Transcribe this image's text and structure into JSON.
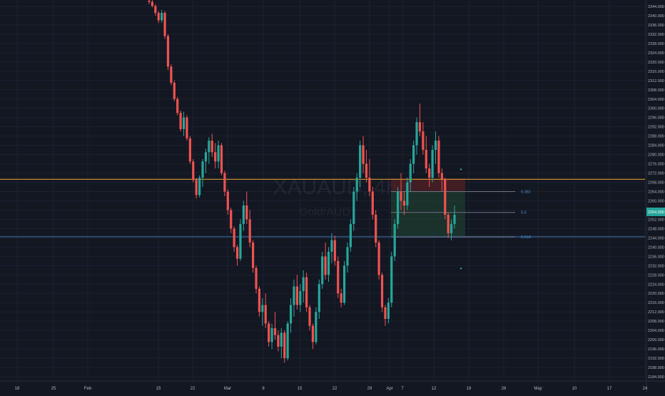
{
  "chart_data": {
    "type": "candlestick",
    "symbol": "XAUAUD, 4h",
    "description": "Gold/AUD",
    "colors": {
      "background": "#131722",
      "grid": "#1c2030",
      "up": "#26a69a",
      "down": "#ef5350",
      "wick": "#8a8f9c",
      "axis_text": "#b2b5be",
      "resistance": "#f0a830",
      "support": "#2a4a6a",
      "fib": "#6d7482",
      "fib_label": "#4a8ec9",
      "target_zone": "#1f3b30",
      "stop_zone": "#4a1f25",
      "price_label_bg": "#26a69a"
    },
    "y_axis": {
      "min": 2184.0,
      "max": 2344.0,
      "ticks": [
        "2344.000",
        "2340.000",
        "2336.000",
        "2332.000",
        "2328.000",
        "2324.000",
        "2320.000",
        "2316.000",
        "2312.000",
        "2308.000",
        "2304.000",
        "2300.000",
        "2296.000",
        "2292.000",
        "2288.000",
        "2284.000",
        "2280.000",
        "2276.000",
        "2272.000",
        "2268.000",
        "2264.000",
        "2260.000",
        "2256.000",
        "2252.000",
        "2248.000",
        "2244.000",
        "2240.000",
        "2236.000",
        "2232.000",
        "2228.000",
        "2224.000",
        "2220.000",
        "2216.000",
        "2212.000",
        "2208.000",
        "2204.000",
        "2200.000",
        "2196.000",
        "2192.000",
        "2188.000",
        "2184.000"
      ]
    },
    "x_axis": {
      "labels": [
        "18",
        "25",
        "Feb",
        "15",
        "22",
        "Mar",
        "8",
        "15",
        "22",
        "29",
        "Apr",
        "7",
        "12",
        "19",
        "26",
        "May",
        "10",
        "17",
        "24"
      ]
    },
    "horizontal_lines": [
      {
        "name": "resistance",
        "price": 2269.3
      },
      {
        "name": "support",
        "price": 2244.5
      }
    ],
    "fib_levels": [
      {
        "label": "0.382",
        "price": 2264.0
      },
      {
        "label": "0.5",
        "price": 2255.0
      },
      {
        "label": "0.618",
        "price": 2244.4
      }
    ],
    "position": {
      "entry": 2264.2,
      "stop": 2269.6,
      "target": 2244.5
    },
    "current_price": "2254.000",
    "markers": [
      {
        "price": 2273.6
      },
      {
        "price": 2230.8
      }
    ],
    "candles": [
      {
        "o": 2346.5,
        "h": 2348.0,
        "l": 2345.0,
        "c": 2346.0
      },
      {
        "o": 2346.0,
        "h": 2347.5,
        "l": 2343.6,
        "c": 2344.2
      },
      {
        "o": 2344.2,
        "h": 2345.0,
        "l": 2340.0,
        "c": 2341.2
      },
      {
        "o": 2341.2,
        "h": 2342.0,
        "l": 2336.8,
        "c": 2338.0
      },
      {
        "o": 2338.0,
        "h": 2342.5,
        "l": 2337.0,
        "c": 2341.2
      },
      {
        "o": 2341.2,
        "h": 2342.0,
        "l": 2330.0,
        "c": 2331.2
      },
      {
        "o": 2331.2,
        "h": 2332.0,
        "l": 2316.5,
        "c": 2318.0
      },
      {
        "o": 2318.0,
        "h": 2319.0,
        "l": 2310.0,
        "c": 2311.0
      },
      {
        "o": 2311.0,
        "h": 2312.0,
        "l": 2303.0,
        "c": 2304.0
      },
      {
        "o": 2304.0,
        "h": 2305.0,
        "l": 2297.0,
        "c": 2298.0
      },
      {
        "o": 2298.0,
        "h": 2299.0,
        "l": 2290.0,
        "c": 2291.0
      },
      {
        "o": 2291.0,
        "h": 2298.5,
        "l": 2288.0,
        "c": 2296.0
      },
      {
        "o": 2296.0,
        "h": 2297.0,
        "l": 2286.0,
        "c": 2287.0
      },
      {
        "o": 2287.0,
        "h": 2288.0,
        "l": 2276.0,
        "c": 2277.0
      },
      {
        "o": 2277.0,
        "h": 2278.0,
        "l": 2268.0,
        "c": 2269.0
      },
      {
        "o": 2269.0,
        "h": 2270.0,
        "l": 2261.0,
        "c": 2262.5
      },
      {
        "o": 2262.5,
        "h": 2271.0,
        "l": 2261.5,
        "c": 2270.0
      },
      {
        "o": 2270.0,
        "h": 2278.0,
        "l": 2266.0,
        "c": 2277.0
      },
      {
        "o": 2277.0,
        "h": 2282.5,
        "l": 2272.0,
        "c": 2281.0
      },
      {
        "o": 2281.0,
        "h": 2287.5,
        "l": 2276.0,
        "c": 2286.0
      },
      {
        "o": 2286.0,
        "h": 2289.0,
        "l": 2279.0,
        "c": 2281.0
      },
      {
        "o": 2281.0,
        "h": 2285.0,
        "l": 2274.0,
        "c": 2277.0
      },
      {
        "o": 2277.0,
        "h": 2286.0,
        "l": 2274.0,
        "c": 2284.0
      },
      {
        "o": 2284.0,
        "h": 2285.0,
        "l": 2271.0,
        "c": 2272.0
      },
      {
        "o": 2272.0,
        "h": 2273.0,
        "l": 2262.0,
        "c": 2264.0
      },
      {
        "o": 2264.0,
        "h": 2265.0,
        "l": 2254.0,
        "c": 2256.0
      },
      {
        "o": 2256.0,
        "h": 2257.0,
        "l": 2246.0,
        "c": 2248.0
      },
      {
        "o": 2248.0,
        "h": 2249.0,
        "l": 2238.0,
        "c": 2240.0
      },
      {
        "o": 2240.0,
        "h": 2241.0,
        "l": 2232.0,
        "c": 2235.0
      },
      {
        "o": 2235.0,
        "h": 2252.0,
        "l": 2234.0,
        "c": 2250.0
      },
      {
        "o": 2250.0,
        "h": 2260.0,
        "l": 2247.0,
        "c": 2258.0
      },
      {
        "o": 2258.0,
        "h": 2264.0,
        "l": 2250.0,
        "c": 2252.0
      },
      {
        "o": 2252.0,
        "h": 2256.0,
        "l": 2240.0,
        "c": 2242.0
      },
      {
        "o": 2242.0,
        "h": 2243.0,
        "l": 2229.0,
        "c": 2231.0
      },
      {
        "o": 2231.0,
        "h": 2232.0,
        "l": 2220.0,
        "c": 2222.0
      },
      {
        "o": 2222.0,
        "h": 2223.0,
        "l": 2210.0,
        "c": 2212.0
      },
      {
        "o": 2212.0,
        "h": 2218.0,
        "l": 2206.0,
        "c": 2215.0
      },
      {
        "o": 2215.0,
        "h": 2220.0,
        "l": 2205.0,
        "c": 2207.0
      },
      {
        "o": 2207.0,
        "h": 2208.0,
        "l": 2197.0,
        "c": 2199.0
      },
      {
        "o": 2199.0,
        "h": 2207.0,
        "l": 2196.0,
        "c": 2205.0
      },
      {
        "o": 2205.0,
        "h": 2212.0,
        "l": 2200.0,
        "c": 2202.0
      },
      {
        "o": 2202.0,
        "h": 2204.0,
        "l": 2195.0,
        "c": 2197.0
      },
      {
        "o": 2197.0,
        "h": 2205.0,
        "l": 2192.0,
        "c": 2203.0
      },
      {
        "o": 2203.0,
        "h": 2204.0,
        "l": 2190.0,
        "c": 2192.0
      },
      {
        "o": 2192.0,
        "h": 2208.0,
        "l": 2191.0,
        "c": 2207.0
      },
      {
        "o": 2207.0,
        "h": 2218.0,
        "l": 2203.0,
        "c": 2215.0
      },
      {
        "o": 2215.0,
        "h": 2226.0,
        "l": 2210.0,
        "c": 2223.0
      },
      {
        "o": 2223.0,
        "h": 2228.0,
        "l": 2213.0,
        "c": 2215.0
      },
      {
        "o": 2215.0,
        "h": 2224.0,
        "l": 2212.0,
        "c": 2221.0
      },
      {
        "o": 2221.0,
        "h": 2230.0,
        "l": 2216.0,
        "c": 2227.0
      },
      {
        "o": 2227.0,
        "h": 2229.0,
        "l": 2212.0,
        "c": 2214.0
      },
      {
        "o": 2214.0,
        "h": 2215.0,
        "l": 2204.0,
        "c": 2206.0
      },
      {
        "o": 2206.0,
        "h": 2207.0,
        "l": 2196.0,
        "c": 2199.0
      },
      {
        "o": 2199.0,
        "h": 2214.0,
        "l": 2198.0,
        "c": 2212.0
      },
      {
        "o": 2212.0,
        "h": 2226.0,
        "l": 2209.0,
        "c": 2224.0
      },
      {
        "o": 2224.0,
        "h": 2238.0,
        "l": 2222.0,
        "c": 2236.0
      },
      {
        "o": 2236.0,
        "h": 2242.0,
        "l": 2226.0,
        "c": 2228.0
      },
      {
        "o": 2228.0,
        "h": 2240.0,
        "l": 2225.0,
        "c": 2238.0
      },
      {
        "o": 2238.0,
        "h": 2246.0,
        "l": 2233.0,
        "c": 2243.0
      },
      {
        "o": 2243.0,
        "h": 2245.0,
        "l": 2232.0,
        "c": 2234.0
      },
      {
        "o": 2234.0,
        "h": 2236.0,
        "l": 2218.0,
        "c": 2220.0
      },
      {
        "o": 2220.0,
        "h": 2222.0,
        "l": 2214.0,
        "c": 2216.0
      },
      {
        "o": 2216.0,
        "h": 2234.0,
        "l": 2215.0,
        "c": 2232.0
      },
      {
        "o": 2232.0,
        "h": 2242.0,
        "l": 2229.0,
        "c": 2240.0
      },
      {
        "o": 2240.0,
        "h": 2252.0,
        "l": 2238.0,
        "c": 2250.0
      },
      {
        "o": 2250.0,
        "h": 2266.0,
        "l": 2247.0,
        "c": 2264.0
      },
      {
        "o": 2264.0,
        "h": 2272.0,
        "l": 2260.0,
        "c": 2270.0
      },
      {
        "o": 2270.0,
        "h": 2286.0,
        "l": 2266.0,
        "c": 2284.0
      },
      {
        "o": 2284.0,
        "h": 2288.0,
        "l": 2272.0,
        "c": 2276.0
      },
      {
        "o": 2276.0,
        "h": 2282.0,
        "l": 2268.0,
        "c": 2270.0
      },
      {
        "o": 2270.0,
        "h": 2278.0,
        "l": 2262.0,
        "c": 2264.0
      },
      {
        "o": 2264.0,
        "h": 2266.0,
        "l": 2252.0,
        "c": 2254.0
      },
      {
        "o": 2254.0,
        "h": 2256.0,
        "l": 2240.0,
        "c": 2242.0
      },
      {
        "o": 2242.0,
        "h": 2243.0,
        "l": 2226.0,
        "c": 2228.0
      },
      {
        "o": 2228.0,
        "h": 2229.0,
        "l": 2212.0,
        "c": 2214.0
      },
      {
        "o": 2214.0,
        "h": 2215.0,
        "l": 2206.0,
        "c": 2209.0
      },
      {
        "o": 2209.0,
        "h": 2218.0,
        "l": 2207.0,
        "c": 2216.0
      },
      {
        "o": 2216.0,
        "h": 2238.0,
        "l": 2214.0,
        "c": 2236.0
      },
      {
        "o": 2236.0,
        "h": 2252.0,
        "l": 2234.0,
        "c": 2250.0
      },
      {
        "o": 2250.0,
        "h": 2266.0,
        "l": 2248.0,
        "c": 2264.0
      },
      {
        "o": 2264.0,
        "h": 2272.0,
        "l": 2256.0,
        "c": 2260.0
      },
      {
        "o": 2260.0,
        "h": 2264.0,
        "l": 2254.0,
        "c": 2258.0
      },
      {
        "o": 2258.0,
        "h": 2270.0,
        "l": 2256.0,
        "c": 2268.0
      },
      {
        "o": 2268.0,
        "h": 2278.0,
        "l": 2264.0,
        "c": 2276.0
      },
      {
        "o": 2276.0,
        "h": 2286.0,
        "l": 2272.0,
        "c": 2284.0
      },
      {
        "o": 2284.0,
        "h": 2296.0,
        "l": 2280.0,
        "c": 2294.0
      },
      {
        "o": 2294.0,
        "h": 2302.0,
        "l": 2288.0,
        "c": 2290.0
      },
      {
        "o": 2290.0,
        "h": 2294.0,
        "l": 2280.0,
        "c": 2282.0
      },
      {
        "o": 2282.0,
        "h": 2288.0,
        "l": 2272.0,
        "c": 2274.0
      },
      {
        "o": 2274.0,
        "h": 2276.0,
        "l": 2266.0,
        "c": 2270.0
      },
      {
        "o": 2270.0,
        "h": 2284.0,
        "l": 2268.0,
        "c": 2282.0
      },
      {
        "o": 2282.0,
        "h": 2290.0,
        "l": 2276.0,
        "c": 2286.0
      },
      {
        "o": 2286.0,
        "h": 2288.0,
        "l": 2270.0,
        "c": 2272.0
      },
      {
        "o": 2272.0,
        "h": 2274.0,
        "l": 2264.0,
        "c": 2269.5
      },
      {
        "o": 2269.5,
        "h": 2270.0,
        "l": 2252.0,
        "c": 2254.0
      },
      {
        "o": 2254.0,
        "h": 2255.0,
        "l": 2244.0,
        "c": 2246.0
      },
      {
        "o": 2246.0,
        "h": 2252.0,
        "l": 2243.0,
        "c": 2250.0
      },
      {
        "o": 2250.0,
        "h": 2258.0,
        "l": 2248.0,
        "c": 2254.0
      }
    ]
  }
}
